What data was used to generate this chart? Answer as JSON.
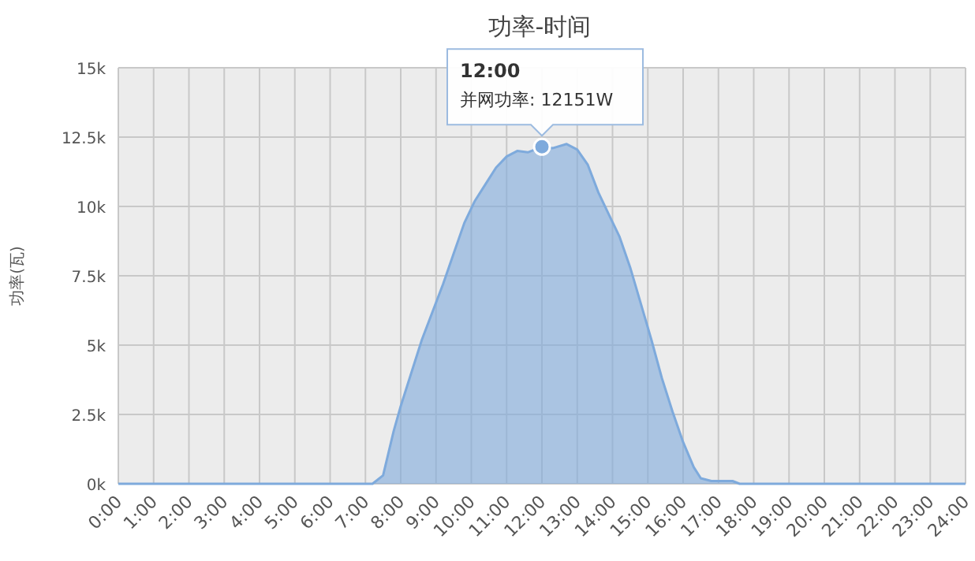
{
  "chart_data": {
    "type": "area",
    "title": "功率-时间",
    "ylabel": "功率(瓦)",
    "x": [
      0,
      7.2,
      7.5,
      7.8,
      8.0,
      8.3,
      8.6,
      8.9,
      9.2,
      9.5,
      9.8,
      10.1,
      10.4,
      10.7,
      11.0,
      11.3,
      11.6,
      12.0,
      12.3,
      12.7,
      13.0,
      13.3,
      13.6,
      13.9,
      14.2,
      14.5,
      14.8,
      15.1,
      15.4,
      15.7,
      16.0,
      16.3,
      16.5,
      16.8,
      17.4,
      17.6,
      24
    ],
    "series": [
      {
        "color": "#7eaadc",
        "values": [
          0,
          0,
          300,
          1900,
          2800,
          4000,
          5200,
          6200,
          7200,
          8300,
          9400,
          10200,
          10800,
          11400,
          11800,
          12000,
          11950,
          12151,
          12100,
          12250,
          12050,
          11500,
          10500,
          9700,
          8900,
          7800,
          6500,
          5200,
          3800,
          2600,
          1500,
          600,
          200,
          100,
          100,
          0,
          0
        ]
      }
    ],
    "xlim": [
      0,
      24
    ],
    "xticks": [
      {
        "value": 0,
        "label": "0:00"
      },
      {
        "value": 1,
        "label": "1:00"
      },
      {
        "value": 2,
        "label": "2:00"
      },
      {
        "value": 3,
        "label": "3:00"
      },
      {
        "value": 4,
        "label": "4:00"
      },
      {
        "value": 5,
        "label": "5:00"
      },
      {
        "value": 6,
        "label": "6:00"
      },
      {
        "value": 7,
        "label": "7:00"
      },
      {
        "value": 8,
        "label": "8:00"
      },
      {
        "value": 9,
        "label": "9:00"
      },
      {
        "value": 10,
        "label": "10:00"
      },
      {
        "value": 11,
        "label": "11:00"
      },
      {
        "value": 12,
        "label": "12:00"
      },
      {
        "value": 13,
        "label": "13:00"
      },
      {
        "value": 14,
        "label": "14:00"
      },
      {
        "value": 15,
        "label": "15:00"
      },
      {
        "value": 16,
        "label": "16:00"
      },
      {
        "value": 17,
        "label": "17:00"
      },
      {
        "value": 18,
        "label": "18:00"
      },
      {
        "value": 19,
        "label": "19:00"
      },
      {
        "value": 20,
        "label": "20:00"
      },
      {
        "value": 21,
        "label": "21:00"
      },
      {
        "value": 22,
        "label": "22:00"
      },
      {
        "value": 23,
        "label": "23:00"
      },
      {
        "value": 24,
        "label": "24:00"
      }
    ],
    "ylim": [
      0,
      15000
    ],
    "yticks": [
      {
        "value": 0,
        "label": "0k"
      },
      {
        "value": 2500,
        "label": "2.5k"
      },
      {
        "value": 5000,
        "label": "5k"
      },
      {
        "value": 7500,
        "label": "7.5k"
      },
      {
        "value": 10000,
        "label": "10k"
      },
      {
        "value": 12500,
        "label": "12.5k"
      },
      {
        "value": 15000,
        "label": "15k"
      }
    ],
    "grid": true,
    "annotations": [
      "12:00",
      {
        "text": "并网功率: 12151W",
        "x": 12,
        "y": 12151
      }
    ]
  }
}
